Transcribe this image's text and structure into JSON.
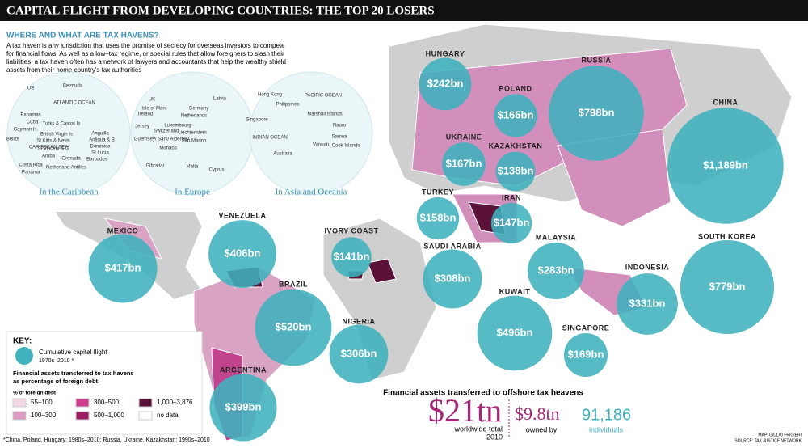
{
  "header": {
    "title": "CAPITAL FLIGHT FROM DEVELOPING COUNTRIES: THE TOP 20 LOSERS"
  },
  "tax_havens": {
    "heading": "WHERE AND WHAT ARE TAX HAVENS?",
    "paragraph": [
      "A tax haven is any jurisdiction that uses the promise of secrecy for overseas investors to compete",
      "for financial flows. As well as a low–tax regime, or special rules that allow foreigners to slash their",
      "liabilities, a tax haven often has a network of lawyers and accountants that help the wealthy shield",
      "assets from their home country's tax authorities"
    ],
    "insets": [
      {
        "caption": "In the Caribbean",
        "labels": [
          "US",
          "Bermuda",
          "ATLANTIC OCEAN",
          "Bahamas",
          "Cuba",
          "Turks & Caicos Is",
          "Cayman Is.",
          "Belize",
          "CARIBBEAN SEA",
          "British Virgin Is",
          "Anguilla",
          "St Kitts & Nevis",
          "Antigua & B",
          "St Vincent & G",
          "Dominica",
          "St Lucia",
          "Aruba",
          "Grenada",
          "Barbados",
          "Costa Rica",
          "Netherland Antilles",
          "Panama"
        ]
      },
      {
        "caption": "In Europe",
        "labels": [
          "UK",
          "Latvia",
          "Isle of Man",
          "Germany",
          "Ireland",
          "Netherlands",
          "Jersey",
          "Luxembourg",
          "Switzerland",
          "Liechtenstein",
          "Guernsey/ Sark/ Alderney",
          "San Marino",
          "Monaco",
          "Gibraltar",
          "Malta",
          "Cyprus"
        ]
      },
      {
        "caption": "In Asia and Oceania",
        "labels": [
          "Hong Kong",
          "PACIFIC OCEAN",
          "Philippines",
          "Singapore",
          "Marshall Islands",
          "Nauru",
          "INDIAN OCEAN",
          "Samoa",
          "Vanuatu",
          "Cook Islands",
          "Australia"
        ]
      }
    ]
  },
  "countries": [
    {
      "name": "HUNGARY",
      "value": 242,
      "label": "$242bn"
    },
    {
      "name": "POLAND",
      "value": 165,
      "label": "$165bn"
    },
    {
      "name": "RUSSIA",
      "value": 798,
      "label": "$798bn"
    },
    {
      "name": "CHINA",
      "value": 1189,
      "label": "$1,189bn"
    },
    {
      "name": "UKRAINE",
      "value": 167,
      "label": "$167bn"
    },
    {
      "name": "KAZAKHSTAN",
      "value": 138,
      "label": "$138bn"
    },
    {
      "name": "TURKEY",
      "value": 158,
      "label": "$158bn"
    },
    {
      "name": "IRAN",
      "value": 147,
      "label": "$147bn"
    },
    {
      "name": "MEXICO",
      "value": 417,
      "label": "$417bn"
    },
    {
      "name": "VENEZUELA",
      "value": 406,
      "label": "$406bn"
    },
    {
      "name": "IVORY COAST",
      "value": 141,
      "label": "$141bn"
    },
    {
      "name": "SAUDI ARABIA",
      "value": 308,
      "label": "$308bn"
    },
    {
      "name": "MALAYSIA",
      "value": 283,
      "label": "$283bn"
    },
    {
      "name": "SOUTH KOREA",
      "value": 779,
      "label": "$779bn"
    },
    {
      "name": "INDONESIA",
      "value": 331,
      "label": "$331bn"
    },
    {
      "name": "BRAZIL",
      "value": 520,
      "label": "$520bn"
    },
    {
      "name": "NIGERIA",
      "value": 306,
      "label": "$306bn"
    },
    {
      "name": "KUWAIT",
      "value": 496,
      "label": "$496bn"
    },
    {
      "name": "SINGAPORE",
      "value": 169,
      "label": "$169bn"
    },
    {
      "name": "ARGENTINA",
      "value": 399,
      "label": "$399bn"
    }
  ],
  "key": {
    "title": "KEY:",
    "bubble": "Cumulative capital flight",
    "bubble_period": "1970s–2010 *",
    "shading": [
      "Financial assets transferred to tax havens",
      "as percentage of foreign debt"
    ],
    "unit": "% of foreign debt",
    "classes": [
      {
        "label": "55–100",
        "color": "#f3d7e6"
      },
      {
        "label": "100–300",
        "color": "#d99bc0"
      },
      {
        "label": "300–500",
        "color": "#d03d8e"
      },
      {
        "label": "500–1,000",
        "color": "#9c1f66"
      },
      {
        "label": "1,000–3,876",
        "color": "#5a1238"
      },
      {
        "label": "no data",
        "color": "#ffffff"
      }
    ]
  },
  "summary": {
    "title": "Financial assets transferred to offshore tax heavens",
    "total": "$21tn",
    "total_note": [
      "worldwide total",
      "2010"
    ],
    "owned": "$9.8tn",
    "owned_note": "owned by",
    "individuals": "91,186",
    "individuals_note": "individuals"
  },
  "footnote": "*China, Poland, Hungary: 1980s–2010; Russia, Ukraine, Kazakhstan: 1990s–2010",
  "credits": [
    "MAP: GIULIO FRIGIERI",
    "SOURCE: TAX JUSTICE NETWORK"
  ]
}
